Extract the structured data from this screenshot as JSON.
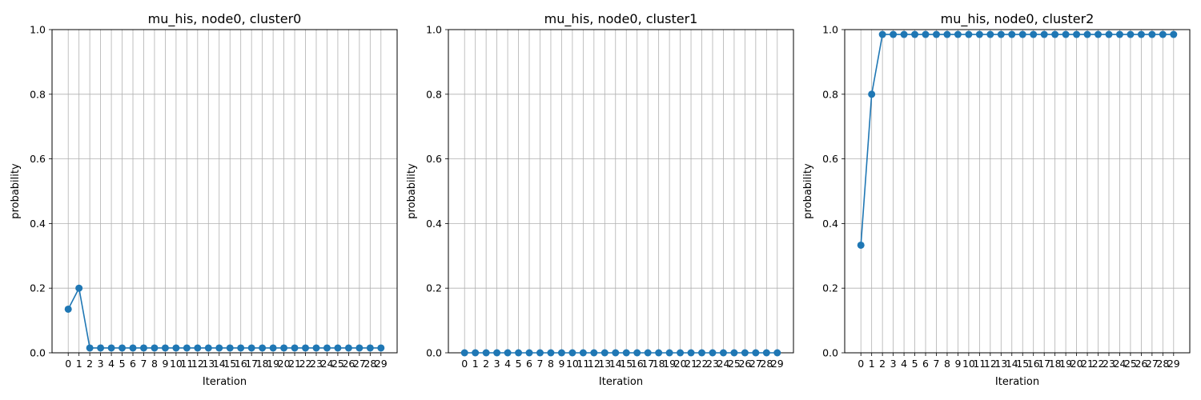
{
  "chart_data": [
    {
      "type": "line",
      "title": "mu_his, node0, cluster0",
      "xlabel": "Iteration",
      "ylabel": "probability",
      "ylim": [
        0,
        1
      ],
      "yticks": [
        "0.0",
        "0.2",
        "0.4",
        "0.6",
        "0.8",
        "1.0"
      ],
      "grid": true,
      "marker": "circle",
      "color": "#1f77b4",
      "x": [
        0,
        1,
        2,
        3,
        4,
        5,
        6,
        7,
        8,
        9,
        10,
        11,
        12,
        13,
        14,
        15,
        16,
        17,
        18,
        19,
        20,
        21,
        22,
        23,
        24,
        25,
        26,
        27,
        28,
        29
      ],
      "values": [
        0.135,
        0.2,
        0.015,
        0.015,
        0.015,
        0.015,
        0.015,
        0.015,
        0.015,
        0.015,
        0.015,
        0.015,
        0.015,
        0.015,
        0.015,
        0.015,
        0.015,
        0.015,
        0.015,
        0.015,
        0.015,
        0.015,
        0.015,
        0.015,
        0.015,
        0.015,
        0.015,
        0.015,
        0.015,
        0.015
      ]
    },
    {
      "type": "line",
      "title": "mu_his, node0, cluster1",
      "xlabel": "Iteration",
      "ylabel": "probability",
      "ylim": [
        0,
        1
      ],
      "yticks": [
        "0.0",
        "0.2",
        "0.4",
        "0.6",
        "0.8",
        "1.0"
      ],
      "grid": true,
      "marker": "circle",
      "color": "#1f77b4",
      "x": [
        0,
        1,
        2,
        3,
        4,
        5,
        6,
        7,
        8,
        9,
        10,
        11,
        12,
        13,
        14,
        15,
        16,
        17,
        18,
        19,
        20,
        21,
        22,
        23,
        24,
        25,
        26,
        27,
        28,
        29
      ],
      "values": [
        0,
        0,
        0,
        0,
        0,
        0,
        0,
        0,
        0,
        0,
        0,
        0,
        0,
        0,
        0,
        0,
        0,
        0,
        0,
        0,
        0,
        0,
        0,
        0,
        0,
        0,
        0,
        0,
        0,
        0
      ]
    },
    {
      "type": "line",
      "title": "mu_his, node0, cluster2",
      "xlabel": "Iteration",
      "ylabel": "probability",
      "ylim": [
        0,
        1
      ],
      "yticks": [
        "0.0",
        "0.2",
        "0.4",
        "0.6",
        "0.8",
        "1.0"
      ],
      "grid": true,
      "marker": "circle",
      "color": "#1f77b4",
      "x": [
        0,
        1,
        2,
        3,
        4,
        5,
        6,
        7,
        8,
        9,
        10,
        11,
        12,
        13,
        14,
        15,
        16,
        17,
        18,
        19,
        20,
        21,
        22,
        23,
        24,
        25,
        26,
        27,
        28,
        29
      ],
      "values": [
        0.333,
        0.8,
        0.985,
        0.985,
        0.985,
        0.985,
        0.985,
        0.985,
        0.985,
        0.985,
        0.985,
        0.985,
        0.985,
        0.985,
        0.985,
        0.985,
        0.985,
        0.985,
        0.985,
        0.985,
        0.985,
        0.985,
        0.985,
        0.985,
        0.985,
        0.985,
        0.985,
        0.985,
        0.985,
        0.985
      ]
    }
  ]
}
